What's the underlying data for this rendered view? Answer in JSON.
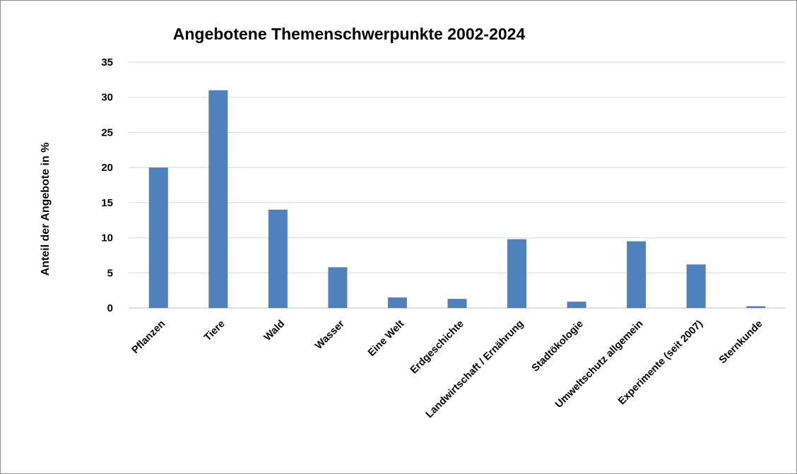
{
  "chart_data": {
    "type": "bar",
    "title": "Angebotene Themenschwerpunkte 2002-2024",
    "xlabel": "",
    "ylabel": "Anteil der Angebote in %",
    "categories": [
      "Pflanzen",
      "Tiere",
      "Wald",
      "Wasser",
      "Eine Welt",
      "Erdgeschichte",
      "Landwirtschaft / Ernährung",
      "Stadtökologie",
      "Umweltschutz allgemein",
      "Experimente (seit 2007)",
      "Sternkunde"
    ],
    "values": [
      20,
      31,
      14,
      5.8,
      1.5,
      1.3,
      9.8,
      0.9,
      9.5,
      6.2,
      0.25
    ],
    "ylim": [
      0,
      35
    ],
    "yticks": [
      0,
      5,
      10,
      15,
      20,
      25,
      30,
      35
    ],
    "grid": true,
    "legend": "none",
    "colors": {
      "bar": "#4f81bd",
      "gridline": "#d9d9d9",
      "frame": "#8c8c8c"
    }
  }
}
